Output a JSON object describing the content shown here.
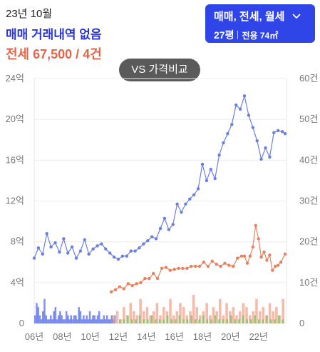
{
  "header": {
    "date": "23년 10월",
    "trade_status": "매매 거래내역 없음",
    "jeonse_summary": "전세 67,500 / 4건"
  },
  "filter": {
    "types": "매매, 전세, 월세",
    "pyeong": "27평",
    "area": "전용 74㎡"
  },
  "compare_button": "VS 가격비교",
  "colors": {
    "sale": "#6b7fe0",
    "jeonse": "#e8825e",
    "monthly": "#7cc46a",
    "sale_bar": "#5a6ee8",
    "jeonse_bar": "#f0a088",
    "filter_bg": "#2f45e8",
    "trade_text": "#2a36d6",
    "jeonse_text": "#e0664a"
  },
  "chart_data": {
    "type": "line",
    "left_axis": {
      "ticks": [
        "0",
        "4억",
        "8억",
        "12억",
        "16억",
        "20억",
        "24억"
      ],
      "range": [
        0,
        24
      ],
      "unit": "억"
    },
    "right_axis": {
      "ticks": [
        "0",
        "10건",
        "20건",
        "30건",
        "40건",
        "50건",
        "60건"
      ],
      "range": [
        0,
        60
      ],
      "unit": "건"
    },
    "x_ticks": [
      "06년",
      "08년",
      "10년",
      "12년",
      "14년",
      "16년",
      "18년",
      "20년",
      "22년"
    ],
    "x_range": [
      2006.0,
      2024.0
    ],
    "series": [
      {
        "name": "매매",
        "x": [
          2006.0,
          2006.3,
          2006.6,
          2006.9,
          2007.2,
          2007.5,
          2007.8,
          2008.1,
          2008.4,
          2008.7,
          2009.0,
          2009.3,
          2009.6,
          2009.9,
          2010.2,
          2010.5,
          2010.8,
          2011.1,
          2011.4,
          2011.7,
          2012.0,
          2012.3,
          2012.6,
          2012.9,
          2013.2,
          2013.5,
          2013.8,
          2014.1,
          2014.4,
          2014.7,
          2015.0,
          2015.3,
          2015.6,
          2015.9,
          2016.2,
          2016.5,
          2016.8,
          2017.1,
          2017.4,
          2017.7,
          2018.0,
          2018.3,
          2018.6,
          2018.9,
          2019.2,
          2019.5,
          2019.8,
          2020.1,
          2020.4,
          2020.7,
          2021.0,
          2021.3,
          2021.6,
          2021.9,
          2022.2,
          2022.5,
          2022.8,
          2023.1,
          2023.4,
          2023.7,
          2023.9
        ],
        "values": [
          6.4,
          7.4,
          6.8,
          8.8,
          7.5,
          7.9,
          7.0,
          8.3,
          6.9,
          7.5,
          6.4,
          7.1,
          8.2,
          6.8,
          7.3,
          7.6,
          7.8,
          7.3,
          6.9,
          6.5,
          6.3,
          6.6,
          6.6,
          7.1,
          7.1,
          7.4,
          7.8,
          8.1,
          8.5,
          8.3,
          9.3,
          10.3,
          9.2,
          9.7,
          11.7,
          10.9,
          11.7,
          12.2,
          12.6,
          13.2,
          15.6,
          14.0,
          15.1,
          14.2,
          16.5,
          17.7,
          18.6,
          19.5,
          21.4,
          21.0,
          22.3,
          20.4,
          19.2,
          17.9,
          16.1,
          17.2,
          16.3,
          18.7,
          18.9,
          18.8,
          18.6
        ]
      },
      {
        "name": "전세",
        "x": [
          2011.5,
          2011.8,
          2012.1,
          2012.4,
          2012.7,
          2013.0,
          2013.3,
          2013.6,
          2013.9,
          2014.2,
          2014.5,
          2014.8,
          2015.1,
          2015.4,
          2015.7,
          2016.0,
          2016.3,
          2016.6,
          2016.9,
          2017.2,
          2017.5,
          2017.8,
          2018.1,
          2018.4,
          2018.7,
          2019.0,
          2019.3,
          2019.6,
          2019.9,
          2020.2,
          2020.5,
          2020.8,
          2021.0,
          2021.2,
          2021.4,
          2021.6,
          2021.8,
          2022.0,
          2022.2,
          2022.4,
          2022.6,
          2022.8,
          2023.0,
          2023.2,
          2023.4,
          2023.6,
          2023.9
        ],
        "values": [
          3.1,
          3.3,
          3.6,
          3.4,
          3.9,
          3.7,
          3.9,
          4.0,
          4.4,
          4.4,
          4.9,
          4.4,
          5.4,
          5.5,
          5.2,
          5.3,
          5.4,
          5.4,
          5.4,
          5.6,
          5.6,
          5.6,
          6.0,
          5.6,
          6.1,
          5.8,
          5.6,
          5.9,
          5.7,
          5.6,
          6.4,
          6.6,
          6.6,
          5.9,
          6.6,
          7.5,
          9.6,
          8.3,
          6.5,
          7.0,
          6.2,
          6.7,
          5.2,
          5.6,
          5.7,
          6.0,
          6.8
        ]
      }
    ],
    "monthly_volume": {
      "sale_counts": [
        2,
        5,
        4,
        2,
        1,
        3,
        6,
        2,
        1,
        1,
        2,
        1,
        3,
        4,
        1,
        2,
        3,
        2,
        1,
        1,
        3,
        2,
        1,
        2,
        1,
        2,
        2,
        1,
        4,
        3,
        1,
        2,
        1,
        2,
        1,
        3,
        1,
        2,
        2,
        1,
        2,
        3,
        1,
        1,
        2,
        1,
        2,
        1,
        1,
        2,
        1,
        2
      ],
      "jeonse_counts": [
        2,
        3,
        1,
        4,
        2,
        5,
        3,
        2,
        6,
        3,
        4,
        2,
        3,
        5,
        2,
        4,
        3,
        6,
        2,
        3,
        5,
        4,
        2,
        3,
        7,
        4,
        2,
        3,
        5,
        2,
        4,
        3,
        6,
        2,
        5,
        3,
        4,
        2,
        3,
        5,
        4,
        2,
        3,
        6,
        3,
        4,
        2,
        5,
        3,
        4,
        2,
        6
      ],
      "monthly_counts": [
        1,
        1,
        2,
        1,
        1,
        2,
        1,
        1,
        2,
        1,
        1,
        1,
        2,
        1,
        1,
        2,
        1,
        1,
        2,
        1,
        1,
        2,
        1,
        1,
        2,
        1,
        1,
        1,
        2,
        1,
        1,
        2,
        1,
        1,
        2,
        1,
        1,
        2,
        1,
        1,
        2,
        1
      ]
    }
  }
}
